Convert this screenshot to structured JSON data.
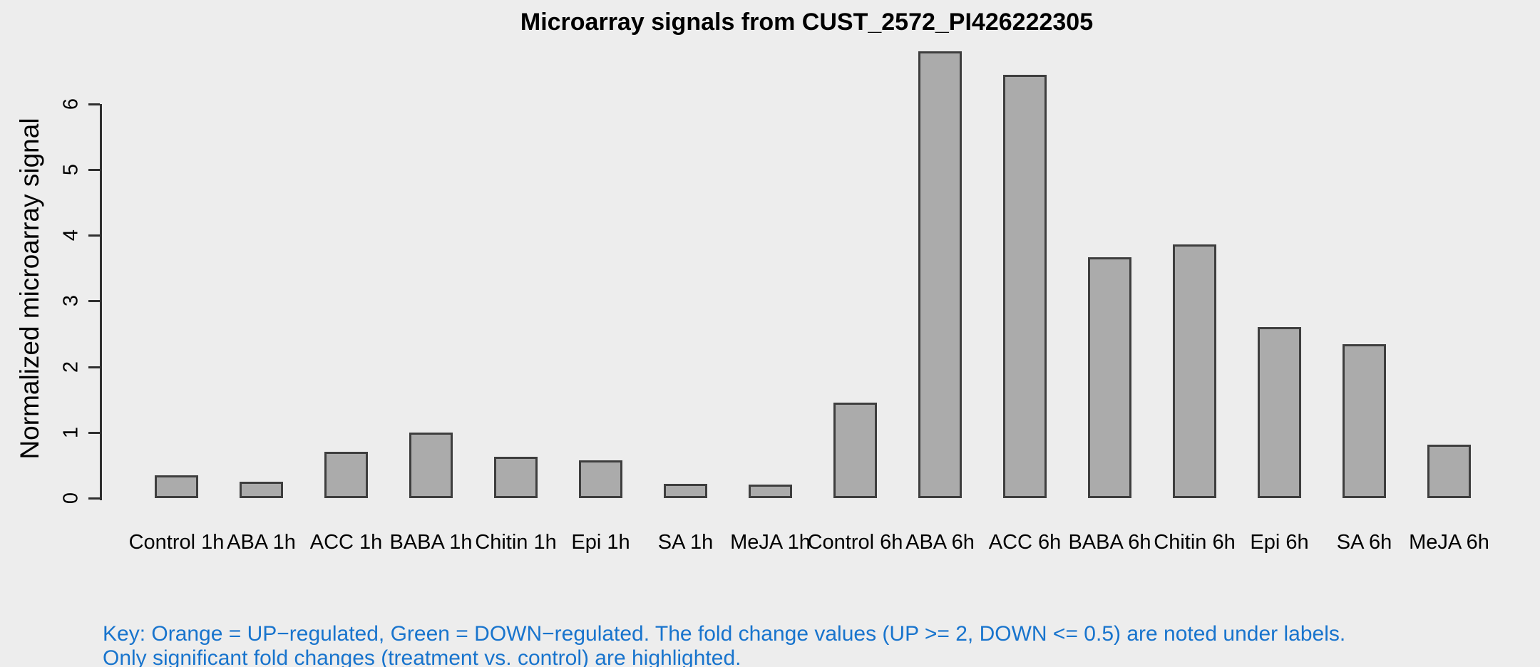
{
  "figure": {
    "background_color": "#EDEDED",
    "key": {
      "line1": "Key: Orange = UP−regulated, Green = DOWN−regulated. The fold change values (UP >= 2, DOWN <= 0.5) are noted under labels.",
      "line2": "Only significant fold changes (treatment vs. control) are highlighted.",
      "text_color": "#1874CD"
    }
  },
  "chart_data": {
    "type": "bar",
    "title": "Microarray signals from CUST_2572_PI426222305",
    "xlabel": "",
    "ylabel": "Normalized microarray signal",
    "categories": [
      "Control 1h",
      "ABA 1h",
      "ACC 1h",
      "BABA 1h",
      "Chitin 1h",
      "Epi 1h",
      "SA 1h",
      "MeJA 1h",
      "Control 6h",
      "ABA 6h",
      "ACC 6h",
      "BABA 6h",
      "Chitin 6h",
      "Epi 6h",
      "SA 6h",
      "MeJA 6h"
    ],
    "values": [
      0.35,
      0.25,
      0.71,
      1.0,
      0.63,
      0.57,
      0.22,
      0.21,
      1.45,
      6.8,
      6.45,
      3.67,
      3.86,
      2.6,
      2.34,
      0.81
    ],
    "yticks": [
      0,
      1,
      2,
      3,
      4,
      5,
      6
    ],
    "ylim": [
      0,
      6
    ],
    "grid": false,
    "legend_position": "none",
    "bar_color": "#ABABAB",
    "bar_border_color": "#3E3E3E",
    "axis_color": "#2F2F2F"
  }
}
